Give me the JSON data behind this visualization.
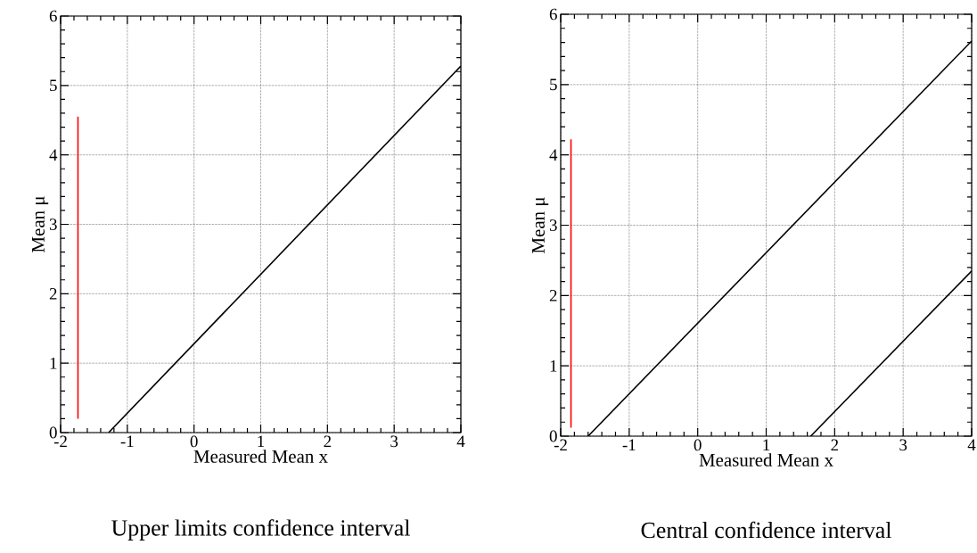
{
  "chart_data": [
    {
      "type": "line",
      "title": "Upper limits confidence interval",
      "xlabel": "Measured Mean x",
      "ylabel": "Mean μ",
      "xlim": [
        -2,
        4
      ],
      "ylim": [
        0,
        6
      ],
      "xticks": [
        -2,
        -1,
        0,
        1,
        2,
        3,
        4
      ],
      "yticks": [
        0,
        1,
        2,
        3,
        4,
        5,
        6
      ],
      "grid": true,
      "line_style": "solid",
      "series": [
        {
          "color": "#ff0000",
          "x": [
            -1.74,
            -1.74
          ],
          "values": [
            0.2,
            4.55
          ]
        },
        {
          "color": "#000000",
          "x": [
            -1.28,
            4
          ],
          "values": [
            0,
            5.28
          ]
        }
      ]
    },
    {
      "type": "line",
      "title": "Central confidence interval",
      "xlabel": "Measured Mean x",
      "ylabel": "Mean μ",
      "xlim": [
        -2,
        4
      ],
      "ylim": [
        0,
        6
      ],
      "xticks": [
        -2,
        -1,
        0,
        1,
        2,
        3,
        4
      ],
      "yticks": [
        0,
        1,
        2,
        3,
        4,
        5,
        6
      ],
      "grid": true,
      "line_style": "solid",
      "series": [
        {
          "color": "#ff0000",
          "x": [
            -1.85,
            -1.85
          ],
          "values": [
            0.12,
            4.22
          ]
        },
        {
          "color": "#000000",
          "x": [
            -1.6,
            4
          ],
          "values": [
            0,
            5.62
          ]
        },
        {
          "color": "#000000",
          "x": [
            1.65,
            4
          ],
          "values": [
            0,
            2.35
          ]
        }
      ]
    }
  ]
}
